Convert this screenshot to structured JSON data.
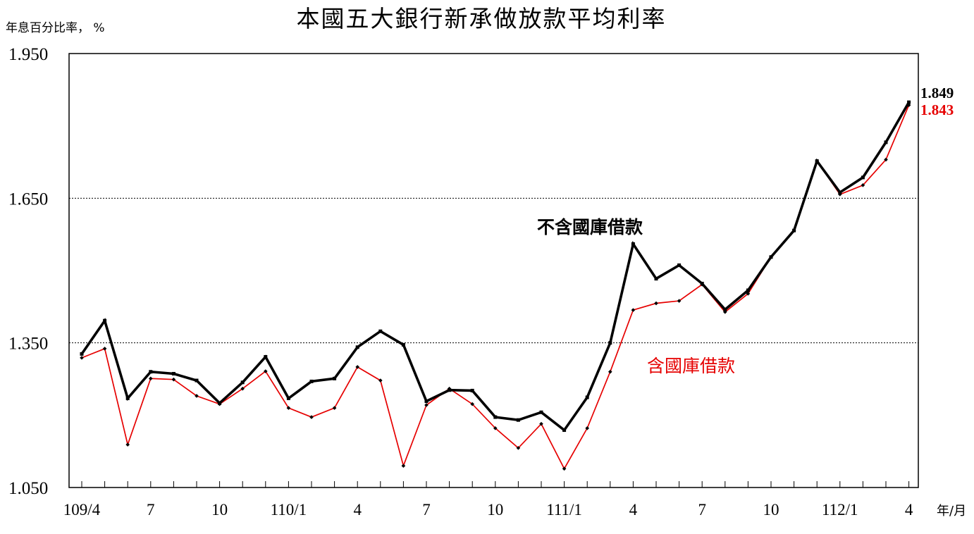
{
  "chart_data": {
    "type": "line",
    "title": "本國五大銀行新承做放款平均利率",
    "ylabel": "年息百分比率， %",
    "xlabel": "年/月",
    "ylim": [
      1.05,
      1.95
    ],
    "yticks": [
      "1.950",
      "1.650",
      "1.350",
      "1.050"
    ],
    "gridlines_at": [
      1.65,
      1.35
    ],
    "xtick_labels": [
      {
        "index": 0,
        "label": "109/4"
      },
      {
        "index": 3,
        "label": "7"
      },
      {
        "index": 6,
        "label": "10"
      },
      {
        "index": 9,
        "label": "110/1"
      },
      {
        "index": 12,
        "label": "4"
      },
      {
        "index": 15,
        "label": "7"
      },
      {
        "index": 18,
        "label": "10"
      },
      {
        "index": 21,
        "label": "111/1"
      },
      {
        "index": 24,
        "label": "4"
      },
      {
        "index": 27,
        "label": "7"
      },
      {
        "index": 30,
        "label": "10"
      },
      {
        "index": 33,
        "label": "112/1"
      },
      {
        "index": 36,
        "label": "4"
      }
    ],
    "n_points": 37,
    "series": [
      {
        "name": "不含國庫借款",
        "color": "#000000",
        "end_label": "1.849",
        "values": [
          1.327,
          1.396,
          1.235,
          1.29,
          1.286,
          1.272,
          1.225,
          1.268,
          1.321,
          1.235,
          1.27,
          1.276,
          1.341,
          1.374,
          1.346,
          1.229,
          1.252,
          1.251,
          1.196,
          1.19,
          1.206,
          1.169,
          1.237,
          1.35,
          1.555,
          1.483,
          1.511,
          1.473,
          1.419,
          1.459,
          1.528,
          1.583,
          1.727,
          1.662,
          1.693,
          1.766,
          1.849
        ]
      },
      {
        "name": "含國庫借款",
        "color": "#e60000",
        "end_label": "1.843",
        "values": [
          1.319,
          1.338,
          1.139,
          1.276,
          1.274,
          1.24,
          1.223,
          1.255,
          1.291,
          1.215,
          1.196,
          1.215,
          1.3,
          1.272,
          1.095,
          1.221,
          1.255,
          1.223,
          1.173,
          1.132,
          1.182,
          1.089,
          1.173,
          1.29,
          1.418,
          1.432,
          1.437,
          1.471,
          1.414,
          1.452,
          1.528,
          1.583,
          1.727,
          1.658,
          1.677,
          1.73,
          1.843
        ]
      }
    ],
    "annotations": [
      {
        "text": "不含國庫借款",
        "color": "#000000"
      },
      {
        "text": "含國庫借款",
        "color": "#e60000"
      }
    ]
  }
}
